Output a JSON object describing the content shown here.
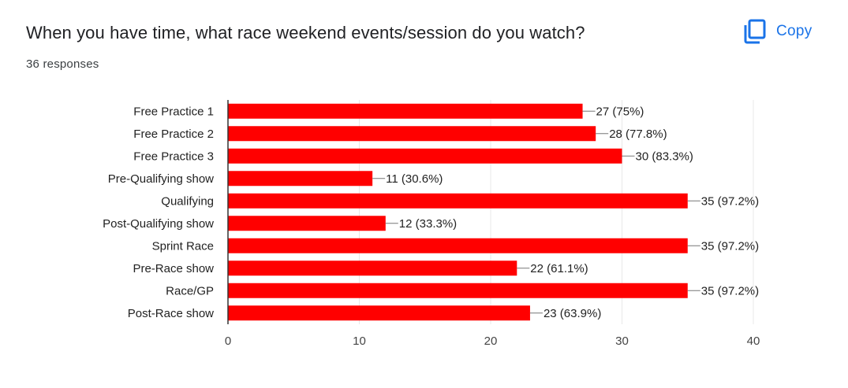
{
  "card": {
    "title": "When you have time, what race weekend events/session do you watch?",
    "responses": "36 responses",
    "copy_label": "Copy",
    "copy_icon": "copy-icon"
  },
  "colors": {
    "bar": "#ff0000",
    "accent": "#1a73e8",
    "grid": "#e8e8e8",
    "axis": "#333333"
  },
  "chart_data": {
    "type": "bar",
    "orientation": "horizontal",
    "categories": [
      "Free Practice 1",
      "Free Practice 2",
      "Free Practice 3",
      "Pre-Qualifying show",
      "Qualifying",
      "Post-Qualifying show",
      "Sprint Race",
      "Pre-Race show",
      "Race/GP",
      "Post-Race show"
    ],
    "values": [
      27,
      28,
      30,
      11,
      35,
      12,
      35,
      22,
      35,
      23
    ],
    "data_labels": [
      "27 (75%)",
      "28 (77.8%)",
      "30 (83.3%)",
      "11 (30.6%)",
      "35 (97.2%)",
      "12 (33.3%)",
      "35 (97.2%)",
      "22 (61.1%)",
      "35 (97.2%)",
      "23 (63.9%)"
    ],
    "xlim": [
      0,
      40
    ],
    "xticks": [
      0,
      10,
      20,
      30,
      40
    ],
    "grid": true,
    "legend": "none"
  }
}
